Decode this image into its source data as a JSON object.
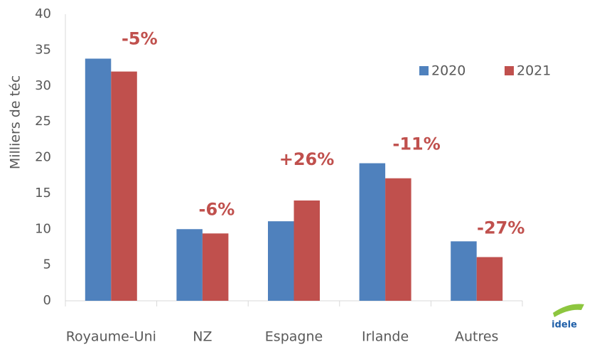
{
  "chart_data": {
    "type": "bar",
    "y_label": "Milliers de téc",
    "categories": [
      "Royaume-Uni",
      "NZ",
      "Espagne",
      "Irlande",
      "Autres"
    ],
    "series": [
      {
        "name": "2020",
        "color": "#4f81bd",
        "values": [
          33.8,
          10.0,
          11.1,
          19.2,
          8.3
        ]
      },
      {
        "name": "2021",
        "color": "#c0504d",
        "values": [
          32.0,
          9.4,
          14.0,
          17.1,
          6.1
        ]
      }
    ],
    "annotations": [
      "-5%",
      "-6%",
      "+26%",
      "-11%",
      "-27%"
    ],
    "annotation_color": "#c0504d",
    "ylim": [
      0,
      40
    ],
    "yticks": [
      0,
      5,
      10,
      15,
      20,
      25,
      30,
      35,
      40
    ],
    "grid": false,
    "legend": "upper right",
    "logo": "idele"
  }
}
